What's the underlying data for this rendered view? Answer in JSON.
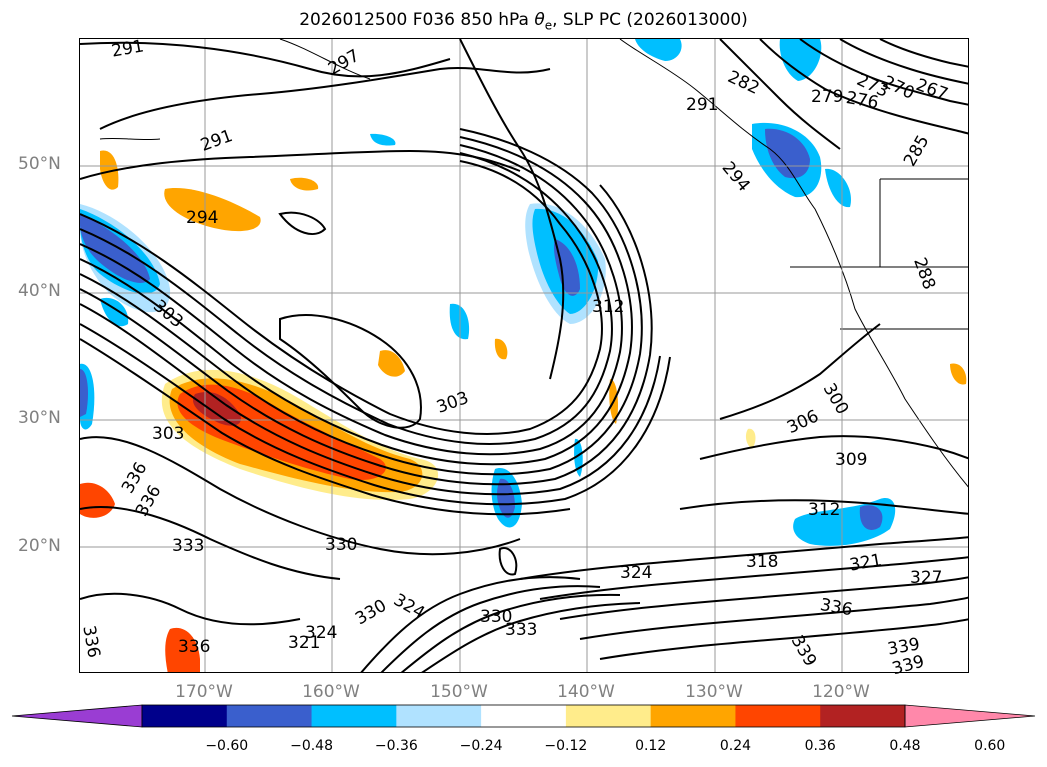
{
  "title": {
    "prefix": "2026012500 F036 850 hPa ",
    "theta_symbol": "θ",
    "theta_sub": "e",
    "suffix": ", SLP PC (2026013000)"
  },
  "axes": {
    "lat_labels": [
      "50°N",
      "40°N",
      "30°N",
      "20°N"
    ],
    "lon_labels": [
      "170°W",
      "160°W",
      "150°W",
      "140°W",
      "130°W",
      "120°W"
    ]
  },
  "colorbar": {
    "colors": [
      "#9a3dd3",
      "#00008b",
      "#3a5fcd",
      "#00bfff",
      "#b0e2ff",
      "#ffffff",
      "#ffec8b",
      "#ffa500",
      "#ff4500",
      "#b22222",
      "#ff88aa"
    ],
    "tick_labels": [
      "−0.60",
      "−0.48",
      "−0.36",
      "−0.24",
      "−0.12",
      "0.12",
      "0.24",
      "0.36",
      "0.48",
      "0.60"
    ]
  },
  "contour_labels": [
    "291",
    "297",
    "291",
    "294",
    "303",
    "312",
    "303",
    "336",
    "336",
    "336",
    "330",
    "324",
    "330",
    "324",
    "321",
    "333",
    "330",
    "333",
    "282",
    "279",
    "276",
    "273",
    "270",
    "267",
    "291",
    "294",
    "285",
    "288",
    "300",
    "306",
    "309",
    "312",
    "318",
    "324",
    "321",
    "327",
    "336",
    "339",
    "339",
    "339",
    "303",
    "336"
  ],
  "colors": {
    "contour": "#000000",
    "grid": "#999999",
    "coast": "#000000",
    "neg_strong": "#3a5fcd",
    "neg_mid": "#00bfff",
    "neg_weak": "#b0e2ff",
    "pos_weak": "#ffec8b",
    "pos_mid": "#ffa500",
    "pos_strong": "#ff4500",
    "pos_max": "#b22222"
  }
}
